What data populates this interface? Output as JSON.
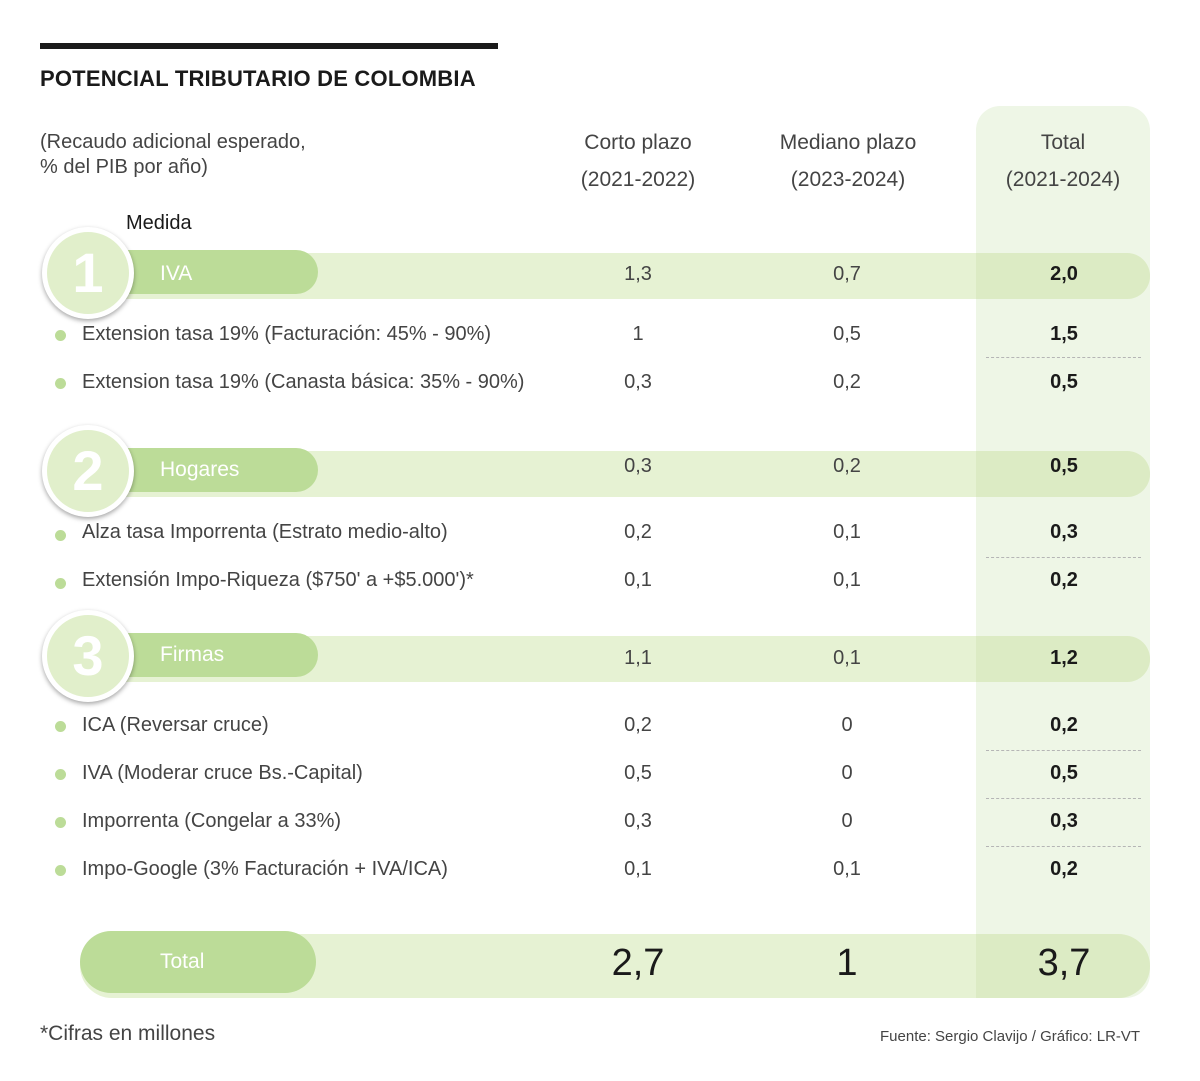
{
  "header": {
    "title": "POTENCIAL TRIBUTARIO DE COLOMBIA",
    "subtitle_line1": "(Recaudo adicional esperado,",
    "subtitle_line2": "% del PIB por año)",
    "medida_label": "Medida"
  },
  "columns": [
    {
      "name": "Corto plazo",
      "period": "(2021-2022)"
    },
    {
      "name": "Mediano plazo",
      "period": "(2023-2024)"
    },
    {
      "name": "Total",
      "period": "(2021-2024)"
    }
  ],
  "groups": [
    {
      "number": "1",
      "label": "IVA",
      "values": [
        "1,3",
        "0,7",
        "2,0"
      ],
      "items": [
        {
          "label": "Extension tasa 19% (Facturación: 45% - 90%)",
          "values": [
            "1",
            "0,5",
            "1,5"
          ]
        },
        {
          "label": "Extension tasa 19% (Canasta básica:  35% - 90%)",
          "values": [
            "0,3",
            "0,2",
            "0,5"
          ]
        }
      ]
    },
    {
      "number": "2",
      "label": "Hogares",
      "values": [
        "0,3",
        "0,2",
        "0,5"
      ],
      "items": [
        {
          "label": "Alza tasa Imporrenta (Estrato medio-alto)",
          "values": [
            "0,2",
            "0,1",
            "0,3"
          ]
        },
        {
          "label": "Extensión Impo-Riqueza ($750' a +$5.000')*",
          "values": [
            "0,1",
            "0,1",
            "0,2"
          ]
        }
      ]
    },
    {
      "number": "3",
      "label": "Firmas",
      "values": [
        "1,1",
        "0,1",
        "1,2"
      ],
      "items": [
        {
          "label": "ICA (Reversar cruce)",
          "values": [
            "0,2",
            "0",
            "0,2"
          ]
        },
        {
          "label": "IVA (Moderar cruce Bs.-Capital)",
          "values": [
            "0,5",
            "0",
            "0,5"
          ]
        },
        {
          "label": "Imporrenta  (Congelar a 33%)",
          "values": [
            "0,3",
            "0",
            "0,3"
          ]
        },
        {
          "label": "Impo-Google (3% Facturación + IVA/ICA)",
          "values": [
            "0,1",
            "0,1",
            "0,2"
          ]
        }
      ]
    }
  ],
  "total": {
    "label": "Total",
    "values": [
      "2,7",
      "1",
      "3,7"
    ]
  },
  "footer": {
    "footnote": "*Cifras en millones",
    "source": "Fuente: Sergio Clavijo  / Gráfico: LR-VT"
  },
  "colors": {
    "accent": "#bcdc98",
    "band": "#e6f2d3",
    "total_column": "#eef6e6"
  },
  "chart_data": {
    "type": "table",
    "title": "POTENCIAL TRIBUTARIO DE COLOMBIA",
    "subtitle": "(Recaudo adicional esperado, % del PIB por año)",
    "columns": [
      "Corto plazo (2021-2022)",
      "Mediano plazo (2023-2024)",
      "Total (2021-2024)"
    ],
    "rows": [
      {
        "group": "IVA",
        "label": "IVA",
        "values": [
          1.3,
          0.7,
          2.0
        ]
      },
      {
        "group": "IVA",
        "label": "Extension tasa 19% (Facturación: 45% - 90%)",
        "values": [
          1,
          0.5,
          1.5
        ]
      },
      {
        "group": "IVA",
        "label": "Extension tasa 19% (Canasta básica:  35% - 90%)",
        "values": [
          0.3,
          0.2,
          0.5
        ]
      },
      {
        "group": "Hogares",
        "label": "Hogares",
        "values": [
          0.3,
          0.2,
          0.5
        ]
      },
      {
        "group": "Hogares",
        "label": "Alza tasa Imporrenta (Estrato medio-alto)",
        "values": [
          0.2,
          0.1,
          0.3
        ]
      },
      {
        "group": "Hogares",
        "label": "Extensión Impo-Riqueza ($750' a +$5.000')*",
        "values": [
          0.1,
          0.1,
          0.2
        ]
      },
      {
        "group": "Firmas",
        "label": "Firmas",
        "values": [
          1.1,
          0.1,
          1.2
        ]
      },
      {
        "group": "Firmas",
        "label": "ICA (Reversar cruce)",
        "values": [
          0.2,
          0,
          0.2
        ]
      },
      {
        "group": "Firmas",
        "label": "IVA (Moderar cruce Bs.-Capital)",
        "values": [
          0.5,
          0,
          0.5
        ]
      },
      {
        "group": "Firmas",
        "label": "Imporrenta  (Congelar a 33%)",
        "values": [
          0.3,
          0,
          0.3
        ]
      },
      {
        "group": "Firmas",
        "label": "Impo-Google (3% Facturación + IVA/ICA)",
        "values": [
          0.1,
          0.1,
          0.2
        ]
      },
      {
        "group": "Total",
        "label": "Total",
        "values": [
          2.7,
          1,
          3.7
        ]
      }
    ]
  }
}
